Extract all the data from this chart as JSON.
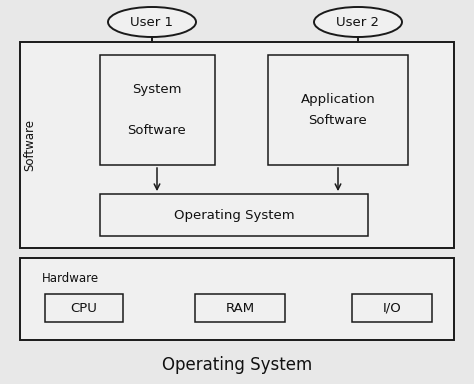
{
  "bg_color": "#e8e8e8",
  "box_face": "#f0f0f0",
  "box_edge": "#1a1a1a",
  "text_color": "#111111",
  "title": "Operating System",
  "title_fontsize": 12,
  "software_label": "Software",
  "hardware_label": "Hardware",
  "user1_label": "User 1",
  "user2_label": "User 2",
  "sys_sw_label": "System\n\nSoftware",
  "app_sw_label": "Application\nSoftware",
  "os_label": "Operating System",
  "cpu_label": "CPU",
  "ram_label": "RAM",
  "io_label": "I/O",
  "font_size_main": 9.5,
  "font_size_small": 8.5,
  "lw_outer": 1.4,
  "lw_inner": 1.1
}
